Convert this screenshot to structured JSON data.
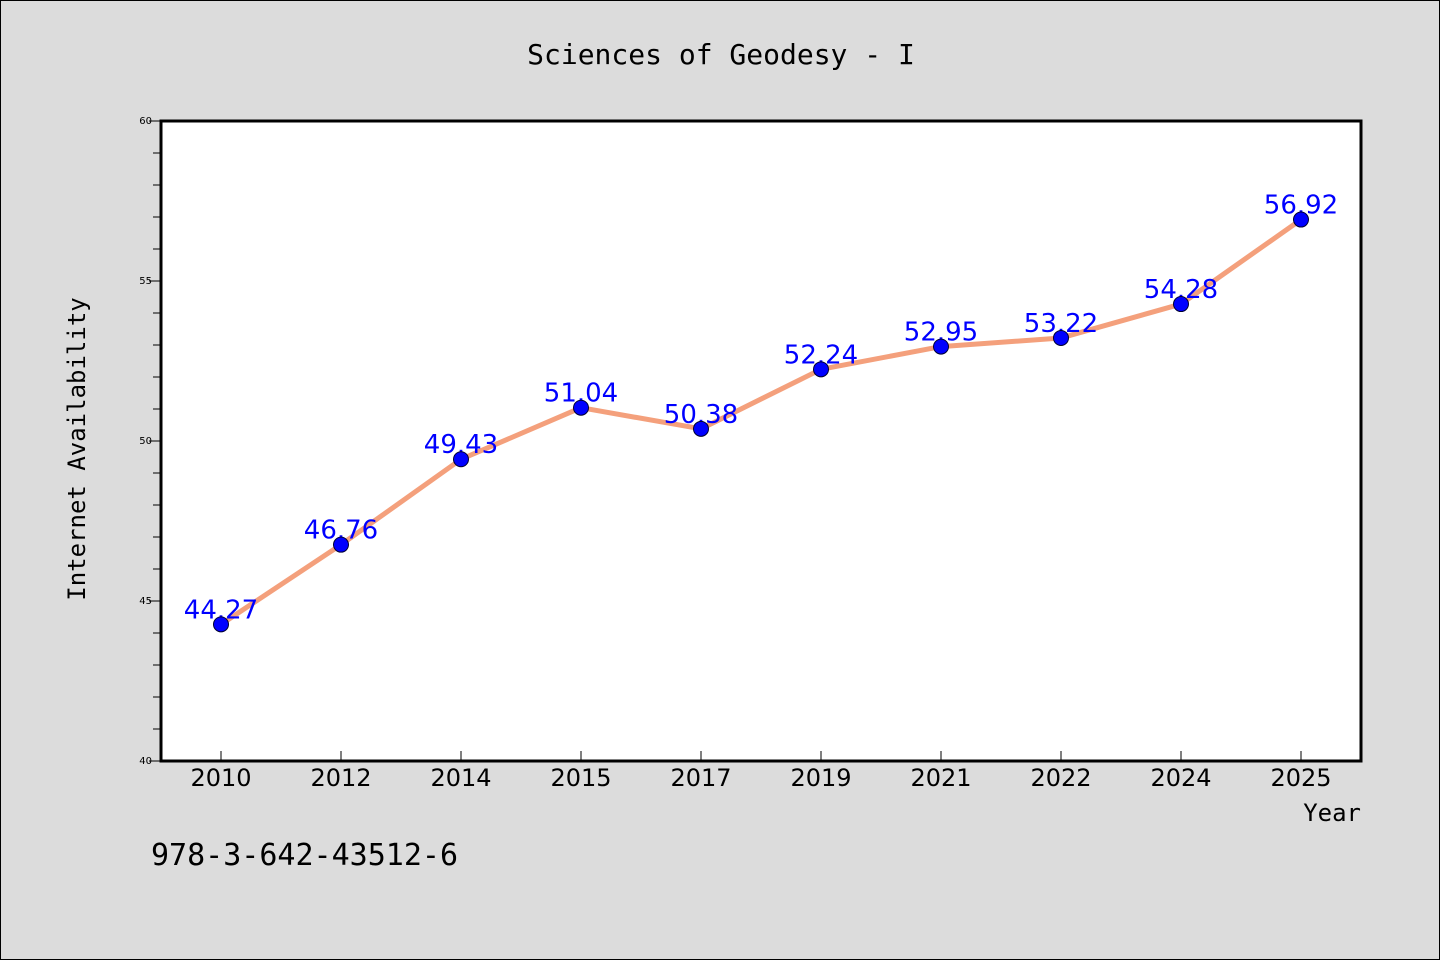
{
  "isbn": "978-3-642-43512-6",
  "chart_data": {
    "type": "line",
    "title": "Sciences of Geodesy - I",
    "xlabel": "Year",
    "ylabel": "Internet Availability",
    "categories": [
      "2010",
      "2012",
      "2014",
      "2015",
      "2017",
      "2019",
      "2021",
      "2022",
      "2024",
      "2025"
    ],
    "values": [
      44.27,
      46.76,
      49.43,
      51.04,
      50.38,
      52.24,
      52.95,
      53.22,
      54.28,
      56.92
    ],
    "data_labels": [
      "44.27",
      "46.76",
      "49.43",
      "51.04",
      "50.38",
      "52.24",
      "52.95",
      "53.22",
      "54.28",
      "56.92"
    ],
    "ylim": [
      40,
      60
    ],
    "y_ticks": [
      40,
      45,
      50,
      55,
      60
    ],
    "y_tick_labels": [
      "40",
      "45",
      "50",
      "55",
      "60"
    ],
    "grid": false,
    "colors": {
      "line": "#f4a07c",
      "marker": "#0000ff",
      "label": "#0000ff",
      "background": "#dcdcdc",
      "plot_background": "#ffffff"
    }
  }
}
